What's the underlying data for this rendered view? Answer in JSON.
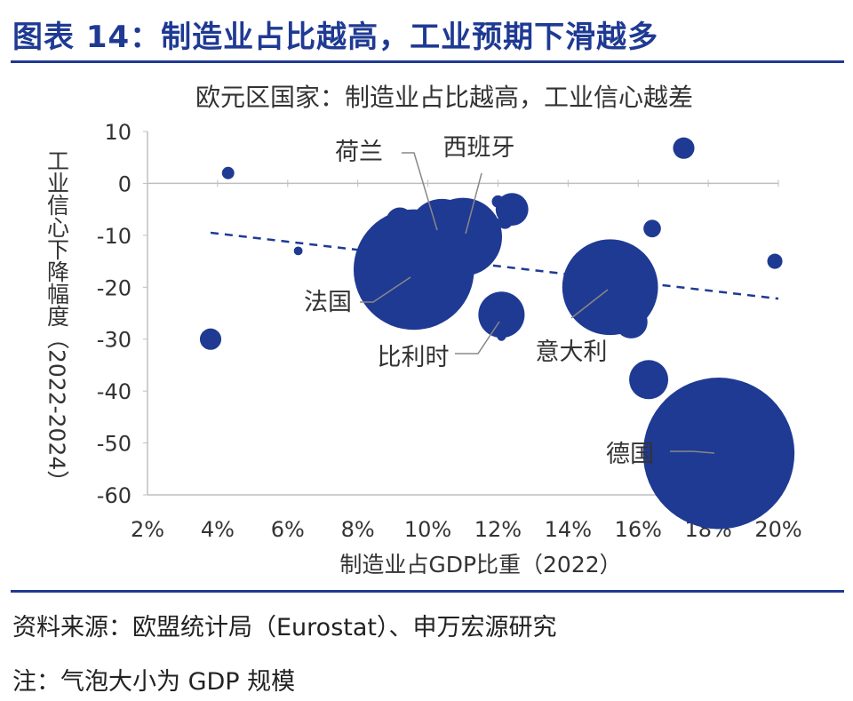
{
  "figure_title": "图表 14：制造业占比越高，工业预期下滑越多",
  "source": "资料来源：欧盟统计局（Eurostat）、申万宏源研究",
  "note": "注：气泡大小为 GDP 规模",
  "colors": {
    "accent": "#1f3a93",
    "bubble": "#1f3a93",
    "axis": "#bfbfbf",
    "text": "#333333"
  },
  "chart_data": {
    "type": "scatter",
    "title": "欧元区国家：制造业占比越高，工业信心越差",
    "xlabel": "制造业占GDP比重（2022）",
    "ylabel": "工业信心下降幅度（2022-2024）",
    "xlim": [
      0.02,
      0.2
    ],
    "ylim": [
      -60,
      10
    ],
    "xticks": [
      "2%",
      "4%",
      "6%",
      "8%",
      "10%",
      "12%",
      "14%",
      "16%",
      "18%",
      "20%"
    ],
    "xtick_values": [
      0.02,
      0.04,
      0.06,
      0.08,
      0.1,
      0.12,
      0.14,
      0.16,
      0.18,
      0.2
    ],
    "yticks": [
      "10",
      "0",
      "-10",
      "-20",
      "-30",
      "-40",
      "-50",
      "-60"
    ],
    "ytick_values": [
      10,
      0,
      -10,
      -20,
      -30,
      -40,
      -50,
      -60
    ],
    "grid": false,
    "points": [
      {
        "x": 0.043,
        "y": 2,
        "size": 1
      },
      {
        "x": 0.038,
        "y": -30,
        "size": 3
      },
      {
        "x": 0.063,
        "y": -13,
        "size": 0.5
      },
      {
        "x": 0.092,
        "y": -7.3,
        "size": 5
      },
      {
        "x": 0.104,
        "y": -9.5,
        "size": 30,
        "label": "荷兰"
      },
      {
        "x": 0.11,
        "y": -10.3,
        "size": 40,
        "label": "西班牙"
      },
      {
        "x": 0.096,
        "y": -16.6,
        "size": 95,
        "label": "法国"
      },
      {
        "x": 0.12,
        "y": -3.5,
        "size": 1
      },
      {
        "x": 0.124,
        "y": -5,
        "size": 7
      },
      {
        "x": 0.122,
        "y": -7.3,
        "size": 1.5
      },
      {
        "x": 0.121,
        "y": -25.3,
        "size": 14,
        "label": "比利时"
      },
      {
        "x": 0.121,
        "y": -29.5,
        "size": 0.5
      },
      {
        "x": 0.152,
        "y": -20,
        "size": 60,
        "label": "意大利"
      },
      {
        "x": 0.164,
        "y": -8.7,
        "size": 2
      },
      {
        "x": 0.158,
        "y": -26.7,
        "size": 7
      },
      {
        "x": 0.163,
        "y": -37.8,
        "size": 10
      },
      {
        "x": 0.173,
        "y": 6.8,
        "size": 3
      },
      {
        "x": 0.199,
        "y": -15,
        "size": 1.5
      },
      {
        "x": 0.183,
        "y": -52,
        "size": 150,
        "label": "德国"
      }
    ],
    "trendline": {
      "style": "dashed",
      "from": {
        "x": 0.038,
        "y": -9.5
      },
      "to": {
        "x": 0.2,
        "y": -22.2
      }
    }
  }
}
